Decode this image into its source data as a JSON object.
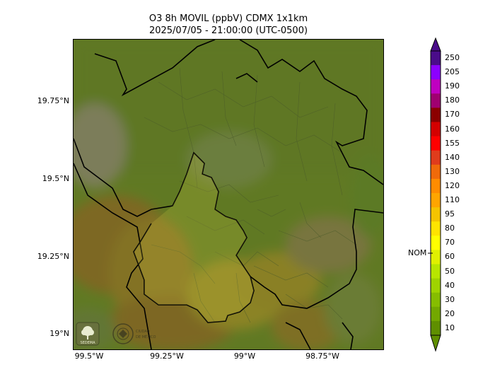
{
  "title": {
    "line1": "O3 8h MOVIL (ppbV) CDMX 1x1km",
    "line2": "2025/07/05 - 21:00:00 (UTC-0500)"
  },
  "axes": {
    "lat_labels": [
      "19.75°N",
      "19.5°N",
      "19.25°N",
      "19°N"
    ],
    "lon_labels": [
      "99.5°W",
      "99.25°W",
      "99°W",
      "98.75°W"
    ]
  },
  "colorbar": {
    "labels": [
      "250",
      "205",
      "190",
      "180",
      "170",
      "160",
      "155",
      "140",
      "130",
      "120",
      "110",
      "95",
      "80",
      "70",
      "60",
      "50",
      "40",
      "30",
      "20",
      "10"
    ],
    "colors": [
      "#4a0c8a",
      "#8c00ff",
      "#c000c0",
      "#a00070",
      "#8b0000",
      "#d40000",
      "#ff0000",
      "#e03c1c",
      "#f06a0a",
      "#ff8c00",
      "#ffa500",
      "#f5c400",
      "#ffe400",
      "#ffff00",
      "#e0f000",
      "#b8e600",
      "#9fd300",
      "#86bd00",
      "#73a800",
      "#5f8f00"
    ],
    "nom_label": "NOM",
    "nom_value": 60
  },
  "logos": {
    "left_icon": "sedema-tree-icon",
    "left_text": "SEDEMA",
    "right_icon": "ciudad-de-mexico-seal-icon",
    "right_text": "CIUDAD DE MÉXICO"
  },
  "colors": {
    "map_base": "#9fcf3a",
    "high_zone": "#d4b12c",
    "mid_zone": "#e6dc3a"
  }
}
